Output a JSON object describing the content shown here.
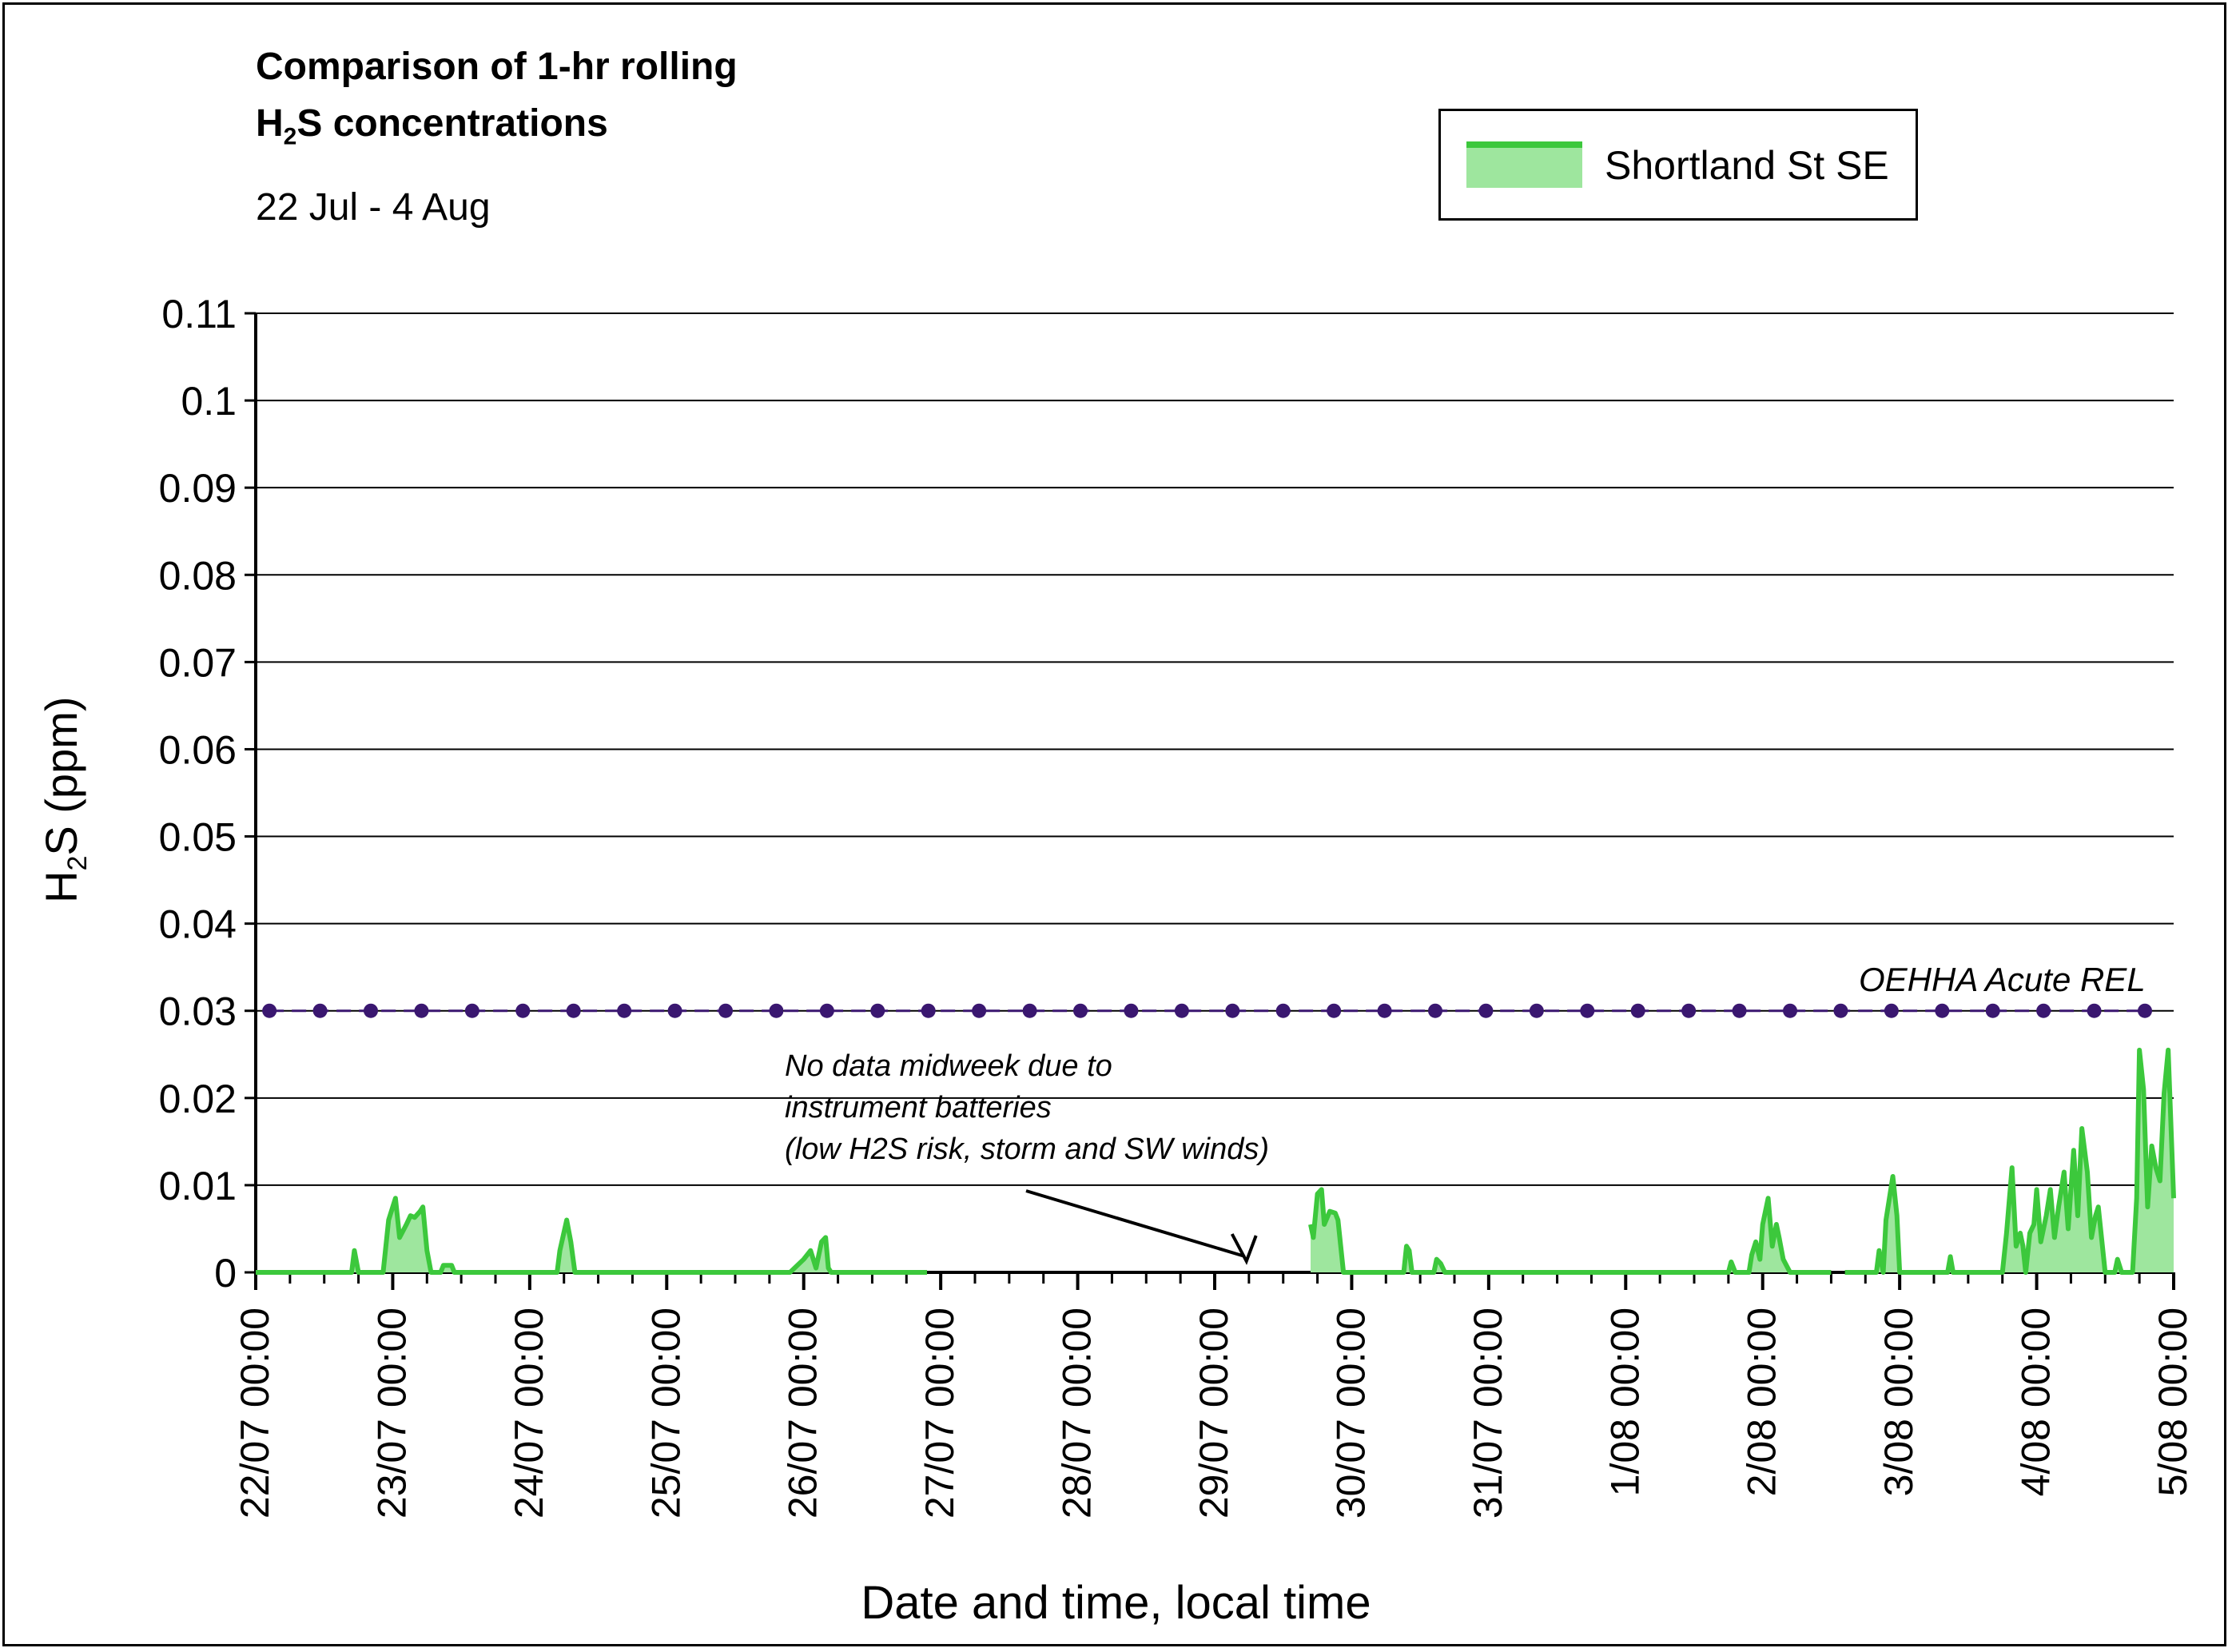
{
  "title": {
    "line1": "Comparison of 1-hr rolling",
    "line2_prefix": "H",
    "line2_sub": "2",
    "line2_suffix": "S concentrations",
    "subtitle": "22 Jul - 4 Aug"
  },
  "legend": {
    "label": "Shortland St SE",
    "line_color": "#3cc83c",
    "fill_color": "#9ee69e"
  },
  "axes": {
    "ylabel_prefix": "H",
    "ylabel_sub": "2",
    "ylabel_suffix": "S (ppm)",
    "xlabel": "Date and time, local time"
  },
  "annotations": {
    "no_data_1": "No data midweek due to",
    "no_data_2": "instrument batteries",
    "no_data_3": "(low H2S risk, storm and SW winds)",
    "rel_label": "OEHHA Acute REL"
  },
  "chart_data": {
    "type": "area",
    "x_unit": "days since 22/07 00:00",
    "xlim": [
      0,
      14
    ],
    "ylim": [
      0,
      0.11
    ],
    "y_ticks": [
      "0",
      "0.01",
      "0.02",
      "0.03",
      "0.04",
      "0.05",
      "0.06",
      "0.07",
      "0.08",
      "0.09",
      "0.1",
      "0.11"
    ],
    "x_ticks": [
      "22/07 00:00",
      "23/07 00:00",
      "24/07 00:00",
      "25/07 00:00",
      "26/07 00:00",
      "27/07 00:00",
      "28/07 00:00",
      "29/07 00:00",
      "30/07 00:00",
      "31/07 00:00",
      "1/08 00:00",
      "2/08 00:00",
      "3/08 00:00",
      "4/08 00:00",
      "5/08 00:00"
    ],
    "grid": "horizontal",
    "legend_position": "top-right",
    "series": [
      {
        "name": "Shortland St SE",
        "color": "#3cc83c",
        "fill": "#9ee69e",
        "segments": [
          [
            [
              0.0,
              0
            ],
            [
              0.7,
              0
            ],
            [
              0.72,
              0.0025
            ],
            [
              0.75,
              0
            ],
            [
              0.93,
              0
            ],
            [
              0.97,
              0.006
            ],
            [
              1.02,
              0.0085
            ],
            [
              1.05,
              0.004
            ],
            [
              1.1,
              0.0055
            ],
            [
              1.13,
              0.0065
            ],
            [
              1.16,
              0.0063
            ],
            [
              1.2,
              0.007
            ],
            [
              1.22,
              0.0075
            ],
            [
              1.25,
              0.0025
            ],
            [
              1.28,
              0
            ],
            [
              1.35,
              0
            ],
            [
              1.37,
              0.0008
            ],
            [
              1.43,
              0.0008
            ],
            [
              1.45,
              0
            ],
            [
              2.2,
              0
            ],
            [
              2.22,
              0.0025
            ],
            [
              2.27,
              0.006
            ],
            [
              2.3,
              0.0035
            ],
            [
              2.33,
              0
            ],
            [
              3.9,
              0
            ],
            [
              4.0,
              0.0015
            ],
            [
              4.05,
              0.0025
            ],
            [
              4.09,
              0.0005
            ],
            [
              4.13,
              0.0035
            ],
            [
              4.16,
              0.004
            ],
            [
              4.18,
              0.0005
            ],
            [
              4.2,
              0
            ],
            [
              4.9,
              0
            ]
          ],
          [
            [
              7.7,
              0.0055
            ],
            [
              7.72,
              0.004
            ],
            [
              7.75,
              0.009
            ],
            [
              7.78,
              0.0095
            ],
            [
              7.8,
              0.0055
            ],
            [
              7.84,
              0.007
            ],
            [
              7.88,
              0.0068
            ],
            [
              7.9,
              0.006
            ],
            [
              7.94,
              0
            ],
            [
              8.38,
              0
            ],
            [
              8.4,
              0.003
            ],
            [
              8.42,
              0.0025
            ],
            [
              8.44,
              0
            ],
            [
              8.6,
              0
            ],
            [
              8.62,
              0.0015
            ],
            [
              8.65,
              0.001
            ],
            [
              8.68,
              0
            ],
            [
              10.75,
              0
            ],
            [
              10.77,
              0.0012
            ],
            [
              10.8,
              0
            ],
            [
              10.9,
              0
            ],
            [
              10.92,
              0.002
            ],
            [
              10.95,
              0.0035
            ],
            [
              10.98,
              0.0015
            ],
            [
              11.0,
              0.0055
            ],
            [
              11.04,
              0.0085
            ],
            [
              11.07,
              0.003
            ],
            [
              11.1,
              0.0055
            ],
            [
              11.12,
              0.004
            ],
            [
              11.15,
              0.0015
            ],
            [
              11.2,
              0
            ],
            [
              11.5,
              0
            ]
          ],
          [
            [
              11.6,
              0
            ],
            [
              11.83,
              0
            ],
            [
              11.85,
              0.0025
            ],
            [
              11.88,
              0
            ],
            [
              11.9,
              0.006
            ],
            [
              11.93,
              0.009
            ],
            [
              11.95,
              0.011
            ],
            [
              11.98,
              0.0065
            ],
            [
              12.0,
              0
            ],
            [
              12.35,
              0
            ],
            [
              12.37,
              0.0018
            ],
            [
              12.39,
              0
            ],
            [
              12.75,
              0
            ],
            [
              12.78,
              0.0045
            ],
            [
              12.82,
              0.012
            ],
            [
              12.85,
              0.003
            ],
            [
              12.88,
              0.0045
            ],
            [
              12.9,
              0.003
            ],
            [
              12.92,
              0
            ],
            [
              12.95,
              0.0045
            ],
            [
              12.98,
              0.0055
            ],
            [
              13.0,
              0.0095
            ],
            [
              13.03,
              0.0035
            ],
            [
              13.07,
              0.0065
            ],
            [
              13.1,
              0.0095
            ],
            [
              13.13,
              0.004
            ],
            [
              13.16,
              0.0075
            ],
            [
              13.2,
              0.0115
            ],
            [
              13.23,
              0.005
            ],
            [
              13.27,
              0.014
            ],
            [
              13.3,
              0.0065
            ],
            [
              13.33,
              0.0165
            ],
            [
              13.37,
              0.0115
            ],
            [
              13.4,
              0.004
            ],
            [
              13.43,
              0.0065
            ],
            [
              13.45,
              0.0075
            ],
            [
              13.5,
              0
            ],
            [
              13.57,
              0
            ],
            [
              13.59,
              0.0015
            ],
            [
              13.62,
              0
            ],
            [
              13.7,
              0
            ],
            [
              13.73,
              0.0085
            ],
            [
              13.75,
              0.0255
            ],
            [
              13.78,
              0.021
            ],
            [
              13.81,
              0.0075
            ],
            [
              13.84,
              0.0145
            ],
            [
              13.87,
              0.012
            ],
            [
              13.9,
              0.0105
            ],
            [
              13.93,
              0.0205
            ],
            [
              13.96,
              0.0255
            ],
            [
              14.0,
              0.0085
            ]
          ]
        ]
      },
      {
        "name": "No data",
        "color": "#000000",
        "segments": [
          [
            [
              4.9,
              0
            ],
            [
              7.7,
              0
            ]
          ],
          [
            [
              11.5,
              0
            ],
            [
              11.6,
              0
            ]
          ]
        ]
      },
      {
        "name": "OEHHA Acute REL",
        "color": "#3a1770",
        "style": "dashed-with-markers",
        "value": 0.03,
        "marker_x": [
          0.1,
          0.47,
          0.84,
          1.21,
          1.58,
          1.95,
          2.32,
          2.69,
          3.06,
          3.43,
          3.8,
          4.17,
          4.54,
          4.91,
          5.28,
          5.65,
          6.02,
          6.39,
          6.76,
          7.13,
          7.5,
          7.87,
          8.24,
          8.61,
          8.98,
          9.35,
          9.72,
          10.09,
          10.46,
          10.83,
          11.2,
          11.57,
          11.94,
          12.31,
          12.68,
          13.05,
          13.42,
          13.79
        ]
      }
    ]
  }
}
